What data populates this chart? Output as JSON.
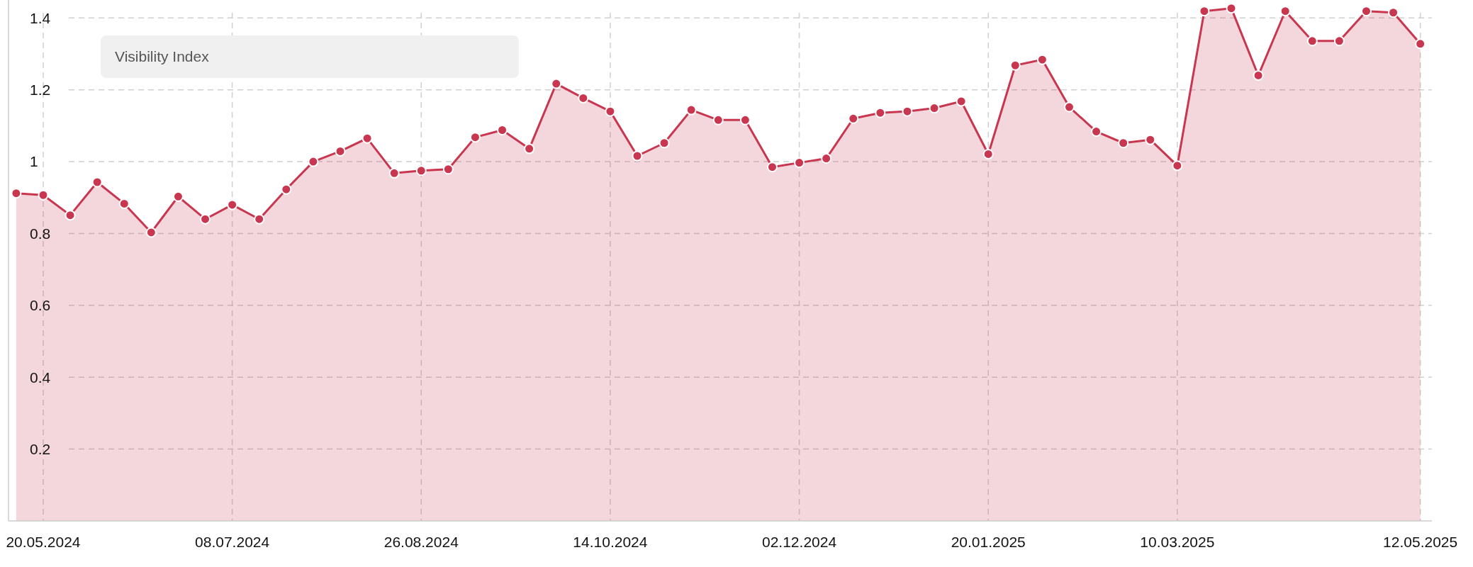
{
  "chart_data": {
    "type": "area",
    "legend_title": "Visibility Index",
    "grid": true,
    "marker": "circle",
    "line_style": "solid",
    "x": [
      "2024-05-13",
      "2024-05-20",
      "2024-05-27",
      "2024-06-03",
      "2024-06-10",
      "2024-06-17",
      "2024-06-24",
      "2024-07-01",
      "2024-07-08",
      "2024-07-15",
      "2024-07-22",
      "2024-07-29",
      "2024-08-05",
      "2024-08-12",
      "2024-08-19",
      "2024-08-26",
      "2024-09-02",
      "2024-09-09",
      "2024-09-16",
      "2024-09-23",
      "2024-09-30",
      "2024-10-07",
      "2024-10-14",
      "2024-10-21",
      "2024-10-28",
      "2024-11-04",
      "2024-11-11",
      "2024-11-18",
      "2024-11-25",
      "2024-12-02",
      "2024-12-09",
      "2024-12-16",
      "2024-12-23",
      "2024-12-30",
      "2025-01-06",
      "2025-01-13",
      "2025-01-20",
      "2025-01-27",
      "2025-02-03",
      "2025-02-10",
      "2025-02-17",
      "2025-02-24",
      "2025-03-03",
      "2025-03-10",
      "2025-03-17",
      "2025-03-24",
      "2025-03-31",
      "2025-04-07",
      "2025-04-14",
      "2025-04-21",
      "2025-04-28",
      "2025-05-05",
      "2025-05-12"
    ],
    "series": [
      {
        "color": "#c8374f",
        "values": [
          0.912,
          0.907,
          0.851,
          0.943,
          0.883,
          0.803,
          0.903,
          0.84,
          0.88,
          0.84,
          0.923,
          1.0,
          1.029,
          1.065,
          0.968,
          0.975,
          0.979,
          1.068,
          1.088,
          1.036,
          1.217,
          1.177,
          1.14,
          1.016,
          1.052,
          1.144,
          1.116,
          1.116,
          0.985,
          0.997,
          1.009,
          1.12,
          1.136,
          1.14,
          1.149,
          1.168,
          1.021,
          1.268,
          1.284,
          1.152,
          1.084,
          1.052,
          1.061,
          0.989,
          1.419,
          1.427,
          1.24,
          1.419,
          1.336,
          1.336,
          1.419,
          1.415,
          1.328
        ]
      }
    ],
    "xlim": [
      "2024-05-11",
      "2025-05-15"
    ],
    "xticks": [
      {
        "value": "2024-05-20",
        "label": "20.05.2024"
      },
      {
        "value": "2024-07-08",
        "label": "08.07.2024"
      },
      {
        "value": "2024-08-26",
        "label": "26.08.2024"
      },
      {
        "value": "2024-10-14",
        "label": "14.10.2024"
      },
      {
        "value": "2024-12-02",
        "label": "02.12.2024"
      },
      {
        "value": "2025-01-20",
        "label": "20.01.2025"
      },
      {
        "value": "2025-03-10",
        "label": "10.03.2025"
      },
      {
        "value": "2025-05-12",
        "label": "12.05.2025"
      }
    ],
    "ylim": [
      0,
      1.45
    ],
    "yticks": [
      0.2,
      0.4,
      0.6,
      0.8,
      1,
      1.2,
      1.4
    ]
  }
}
